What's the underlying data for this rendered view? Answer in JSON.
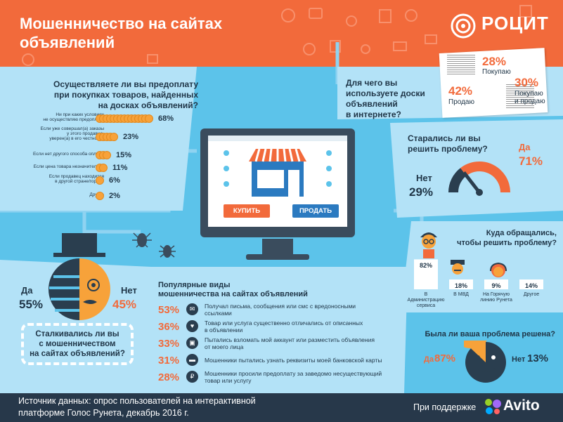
{
  "header": {
    "title_line1": "Мошенничество на сайтах",
    "title_line2": "объявлений",
    "logo_text": "РОЦИТ"
  },
  "prepay": {
    "question": [
      "Осуществляете ли вы предоплату",
      "при покупках товаров, найденных",
      "на досках объявлений?"
    ],
    "rows": [
      {
        "label": [
          "Ни при каких условиях",
          "не осуществляю предоплату"
        ],
        "pct": "68%",
        "value": 68
      },
      {
        "label": [
          "Если уже совершал(а) заказы",
          "у этого продавца,",
          "уверен(а) в его честности"
        ],
        "pct": "23%",
        "value": 23
      },
      {
        "label": [
          "Если нет другого способа оплаты"
        ],
        "pct": "15%",
        "value": 15
      },
      {
        "label": [
          "Если цена товара незначительна"
        ],
        "pct": "11%",
        "value": 11
      },
      {
        "label": [
          "Если продавец находится",
          "в другой стране/городе"
        ],
        "pct": "6%",
        "value": 6
      },
      {
        "label": [
          "Другое"
        ],
        "pct": "2%",
        "value": 2
      }
    ]
  },
  "usage": {
    "question": [
      "Для чего вы",
      "используете доски",
      "объявлений",
      "в интернете?"
    ],
    "buy_pct": "28%",
    "buy_label": "Покупаю",
    "sell_pct": "42%",
    "sell_label": "Продаю",
    "both_pct": "30%",
    "both_label": [
      "Покупаю",
      "и продаю"
    ]
  },
  "monitor": {
    "buy_button": "КУПИТЬ",
    "sell_button": "ПРОДАТЬ"
  },
  "tried": {
    "question": [
      "Старались ли вы",
      "решить проблему?"
    ],
    "yes_label": "Да",
    "yes_pct": "71%",
    "yes_value": 71,
    "no_label": "Нет",
    "no_pct": "29%",
    "no_value": 29
  },
  "encounter": {
    "yes_label": "Да",
    "yes_pct": "55%",
    "yes_value": 55,
    "no_label": "Нет",
    "no_pct": "45%",
    "no_value": 45,
    "question": [
      "Сталкивались ли вы",
      "с мошенничеством",
      "на сайтах объявлений?"
    ]
  },
  "fraud": {
    "title": [
      "Популярные виды",
      "мошенничества на сайтах объявлений"
    ],
    "items": [
      {
        "pct": "53%",
        "icon": "chat-icon",
        "text": [
          "Получал письма, сообщения или смс с вредоносными",
          "ссылками"
        ]
      },
      {
        "pct": "36%",
        "icon": "broken-heart-icon",
        "text": [
          "Товар или услуга существенно отличались от описанных",
          "в объявлении"
        ]
      },
      {
        "pct": "33%",
        "icon": "lock-icon",
        "text": [
          "Пытались взломать мой аккаунт или разместить объявления",
          "от моего лица"
        ]
      },
      {
        "pct": "31%",
        "icon": "card-icon",
        "text": [
          "Мошенники пытались узнать реквизиты моей банковской карты"
        ]
      },
      {
        "pct": "28%",
        "icon": "wallet-icon",
        "text": [
          "Мошенники просили предоплату за заведомо несуществующий",
          "товар или услугу"
        ]
      }
    ]
  },
  "where": {
    "question": [
      "Куда обращались,",
      "чтобы решить проблему?"
    ],
    "bars": [
      {
        "label": [
          "В Администрацию",
          "сервиса"
        ],
        "pct": "82%",
        "value": 82
      },
      {
        "label": [
          "В МВД"
        ],
        "pct": "18%",
        "value": 18
      },
      {
        "label": [
          "На Горячую",
          "линию Рунета"
        ],
        "pct": "9%",
        "value": 9
      },
      {
        "label": [
          "Другое"
        ],
        "pct": "14%",
        "value": 14
      }
    ]
  },
  "solved": {
    "question": "Была ли ваша проблема решена?",
    "yes_label": "Да",
    "yes_pct": "87%",
    "yes_value": 87,
    "no_label": "Нет",
    "no_pct": "13%",
    "no_value": 13
  },
  "footer": {
    "source": [
      "Источник данных: опрос пользователей на интерактивной",
      "платформе Голос Рунета, декабрь 2016 г."
    ],
    "support": "При поддержке",
    "avito": "Avito"
  },
  "colors": {
    "orange": "#f26a3b",
    "coin": "#f7a23a",
    "dark": "#2a3e4f",
    "light_blue": "#5cc3ea",
    "panel": "#b3e2f7",
    "blue_button": "#2b7ac0"
  }
}
